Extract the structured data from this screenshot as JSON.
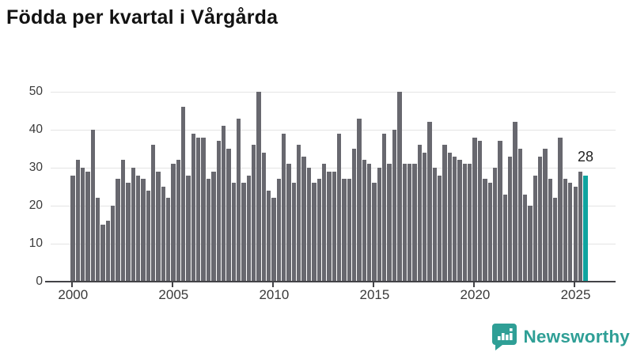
{
  "title": "Födda per kvartal i Vårgårda",
  "chart_data": {
    "type": "bar",
    "title": "Födda per kvartal i Vårgårda",
    "x_start": "2000-Q1",
    "x_end": "2025-Q3",
    "x_tick_labels": [
      "2000",
      "2005",
      "2010",
      "2015",
      "2020",
      "2025"
    ],
    "y_ticks": [
      0,
      10,
      20,
      30,
      40,
      50
    ],
    "ylim": [
      0,
      50
    ],
    "grid": "horizontal",
    "values": [
      28,
      32,
      30,
      29,
      40,
      22,
      15,
      16,
      20,
      27,
      32,
      26,
      30,
      28,
      27,
      24,
      36,
      29,
      25,
      22,
      31,
      32,
      46,
      28,
      39,
      38,
      38,
      27,
      29,
      37,
      41,
      35,
      26,
      43,
      26,
      28,
      36,
      50,
      34,
      24,
      22,
      27,
      39,
      31,
      26,
      36,
      33,
      30,
      26,
      27,
      31,
      29,
      29,
      39,
      27,
      27,
      35,
      43,
      32,
      31,
      26,
      30,
      39,
      31,
      40,
      50,
      31,
      31,
      31,
      36,
      34,
      42,
      30,
      28,
      36,
      34,
      33,
      32,
      31,
      31,
      38,
      37,
      27,
      26,
      30,
      37,
      23,
      33,
      42,
      35,
      23,
      20,
      28,
      33,
      35,
      27,
      22,
      38,
      27,
      26,
      25,
      29,
      28
    ],
    "highlight_last_bar": true,
    "last_value_label": "28",
    "colors": {
      "bar": "#68686f",
      "highlight": "#0fa49f",
      "grid": "#e4e4e4",
      "axis": "#434347",
      "tick_text": "#3a3a3a",
      "title_text": "#121212"
    }
  },
  "logo": {
    "text": "Newsworthy",
    "color": "#2f9f96",
    "icon": "newsworthy-chart-bubble-icon"
  }
}
